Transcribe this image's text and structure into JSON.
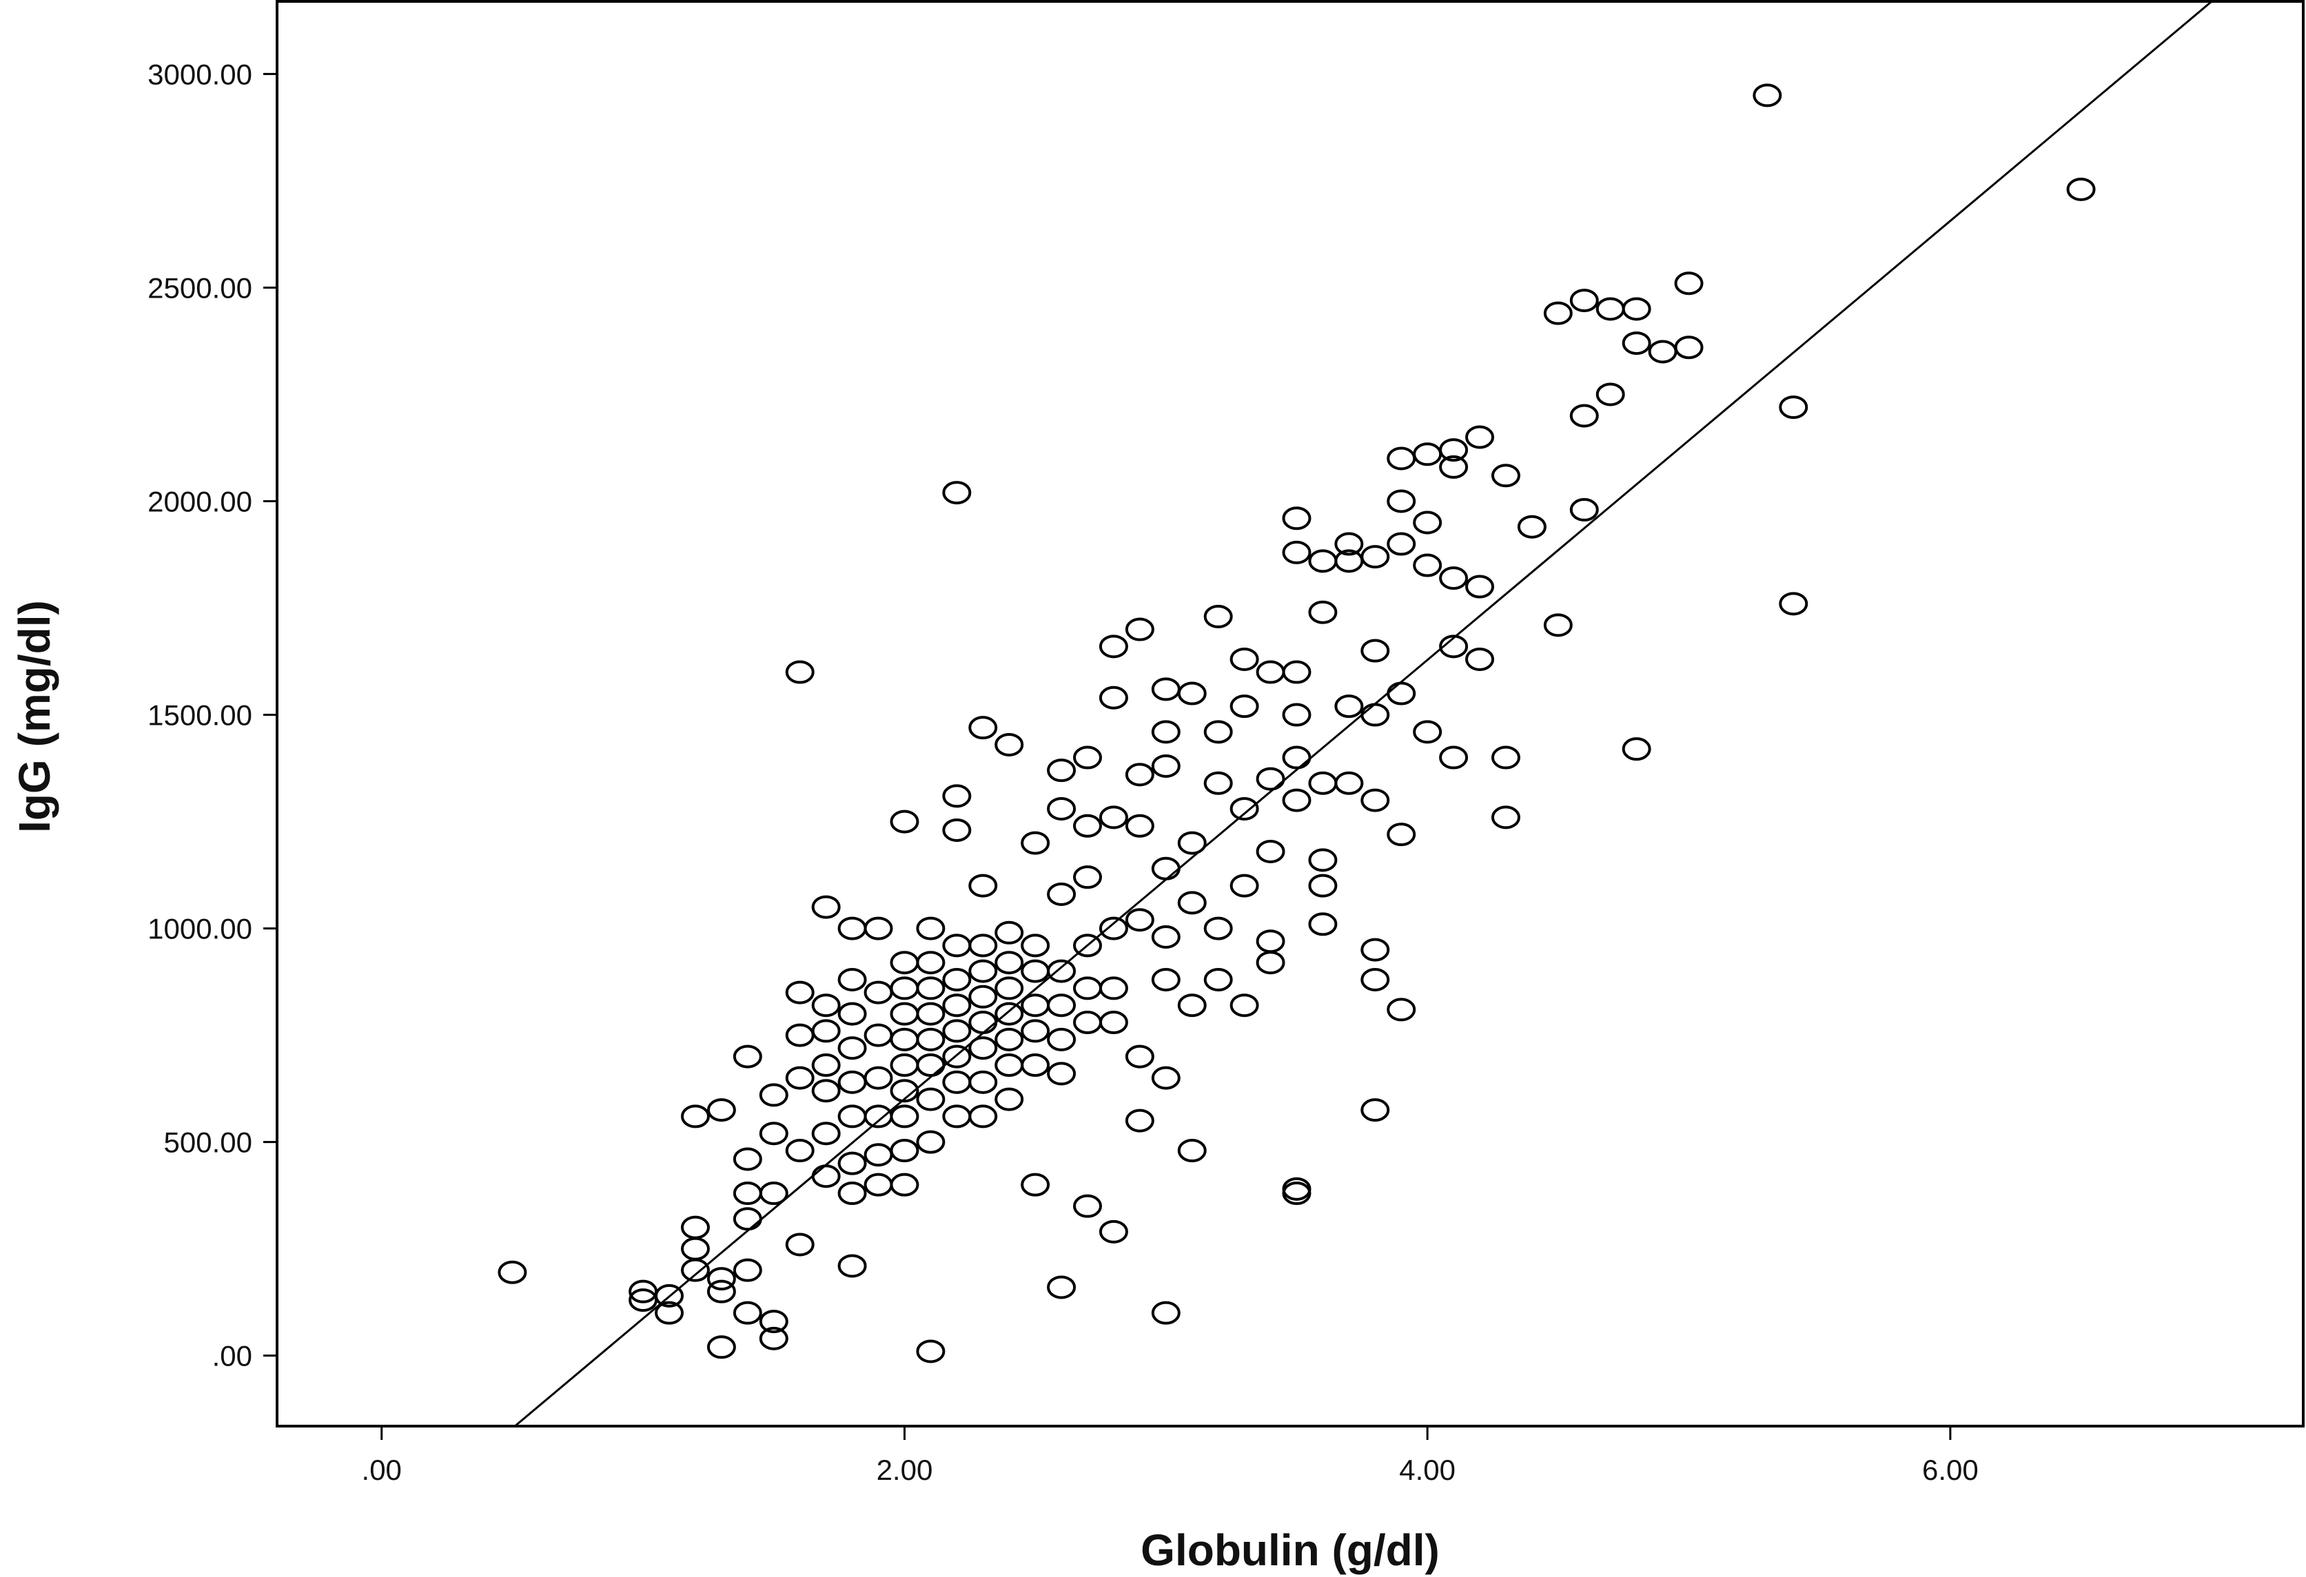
{
  "chart_data": {
    "type": "scatter",
    "title": "",
    "xlabel": "Globulin (g/dl)",
    "ylabel": "IgG (mg/dl)",
    "xlim": [
      -0.4,
      7.35
    ],
    "ylim": [
      -165,
      3170
    ],
    "x_ticks": [
      0,
      2,
      4,
      6
    ],
    "x_tick_labels": [
      ".00",
      "2.00",
      "4.00",
      "6.00"
    ],
    "y_ticks": [
      0,
      500,
      1000,
      1500,
      2000,
      2500,
      3000
    ],
    "y_tick_labels": [
      ".00",
      "500.00",
      "1000.00",
      "1500.00",
      "2000.00",
      "2500.00",
      "3000.00"
    ],
    "grid": false,
    "legend": "none",
    "fit_line": {
      "type": "linear",
      "x": [
        0.5,
        7.0
      ],
      "y": [
        -170,
        3170
      ]
    },
    "series": [
      {
        "marker": "open-circle",
        "color": "#000000",
        "x": [
          0.5,
          1.0,
          1.0,
          1.1,
          1.1,
          1.2,
          1.2,
          1.2,
          1.2,
          1.3,
          1.3,
          1.3,
          1.3,
          1.4,
          1.4,
          1.4,
          1.4,
          1.4,
          1.4,
          1.5,
          1.5,
          1.5,
          1.5,
          1.5,
          1.6,
          1.6,
          1.6,
          1.6,
          1.6,
          1.6,
          1.7,
          1.7,
          1.7,
          1.7,
          1.7,
          1.7,
          1.7,
          1.8,
          1.8,
          1.8,
          1.8,
          1.8,
          1.8,
          1.8,
          1.8,
          1.8,
          1.9,
          1.9,
          1.9,
          1.9,
          1.9,
          1.9,
          1.9,
          2.0,
          2.0,
          2.0,
          2.0,
          2.0,
          2.0,
          2.0,
          2.0,
          2.0,
          2.0,
          2.1,
          2.1,
          2.1,
          2.1,
          2.1,
          2.1,
          2.1,
          2.1,
          2.1,
          2.2,
          2.2,
          2.2,
          2.2,
          2.2,
          2.2,
          2.2,
          2.2,
          2.2,
          2.2,
          2.3,
          2.3,
          2.3,
          2.3,
          2.3,
          2.3,
          2.3,
          2.3,
          2.3,
          2.4,
          2.4,
          2.4,
          2.4,
          2.4,
          2.4,
          2.4,
          2.4,
          2.5,
          2.5,
          2.5,
          2.5,
          2.5,
          2.5,
          2.5,
          2.6,
          2.6,
          2.6,
          2.6,
          2.6,
          2.6,
          2.6,
          2.6,
          2.7,
          2.7,
          2.7,
          2.7,
          2.7,
          2.7,
          2.7,
          2.8,
          2.8,
          2.8,
          2.8,
          2.8,
          2.8,
          2.8,
          2.9,
          2.9,
          2.9,
          2.9,
          2.9,
          2.9,
          3.0,
          3.0,
          3.0,
          3.0,
          3.0,
          3.0,
          3.0,
          3.0,
          3.1,
          3.1,
          3.1,
          3.1,
          3.1,
          3.2,
          3.2,
          3.2,
          3.2,
          3.2,
          3.3,
          3.3,
          3.3,
          3.3,
          3.3,
          3.4,
          3.4,
          3.4,
          3.4,
          3.4,
          3.5,
          3.5,
          3.5,
          3.5,
          3.5,
          3.5,
          3.5,
          3.5,
          3.6,
          3.6,
          3.6,
          3.6,
          3.6,
          3.6,
          3.7,
          3.7,
          3.7,
          3.7,
          3.8,
          3.8,
          3.8,
          3.8,
          3.8,
          3.8,
          3.8,
          3.9,
          3.9,
          3.9,
          3.9,
          3.9,
          3.9,
          4.0,
          4.0,
          4.0,
          4.0,
          4.1,
          4.1,
          4.1,
          4.1,
          4.1,
          4.2,
          4.2,
          4.2,
          4.3,
          4.3,
          4.3,
          4.4,
          4.5,
          4.5,
          4.6,
          4.6,
          4.6,
          4.7,
          4.7,
          4.8,
          4.8,
          4.8,
          4.9,
          5.0,
          5.0,
          5.3,
          5.4,
          5.4,
          6.5
        ],
        "y": [
          195,
          130,
          150,
          100,
          140,
          560,
          250,
          200,
          300,
          575,
          180,
          150,
          20,
          700,
          460,
          380,
          320,
          200,
          100,
          380,
          520,
          610,
          80,
          40,
          1600,
          850,
          750,
          650,
          480,
          260,
          1050,
          820,
          760,
          680,
          620,
          520,
          420,
          1000,
          880,
          800,
          720,
          640,
          560,
          450,
          380,
          210,
          1000,
          850,
          750,
          650,
          560,
          470,
          400,
          1250,
          920,
          860,
          800,
          740,
          680,
          620,
          560,
          480,
          400,
          1000,
          920,
          860,
          800,
          740,
          680,
          600,
          500,
          10,
          2020,
          1310,
          1230,
          960,
          880,
          820,
          760,
          700,
          640,
          560,
          1470,
          1100,
          960,
          900,
          840,
          780,
          720,
          640,
          560,
          1430,
          990,
          920,
          860,
          800,
          740,
          680,
          600,
          1200,
          960,
          900,
          820,
          760,
          680,
          400,
          1370,
          1280,
          1080,
          900,
          820,
          740,
          660,
          160,
          1400,
          1240,
          1120,
          960,
          860,
          780,
          350,
          1660,
          1540,
          1260,
          1000,
          860,
          780,
          290,
          1700,
          1360,
          1240,
          1020,
          700,
          550,
          1560,
          1460,
          1380,
          1140,
          980,
          880,
          650,
          100,
          1550,
          1200,
          1060,
          820,
          480,
          1730,
          1460,
          1340,
          1000,
          880,
          1630,
          1520,
          1280,
          1100,
          820,
          1600,
          1350,
          1180,
          970,
          920,
          1960,
          1880,
          1600,
          1500,
          1400,
          1300,
          390,
          380,
          1860,
          1740,
          1340,
          1160,
          1100,
          1010,
          1900,
          1860,
          1520,
          1340,
          1870,
          1650,
          1500,
          1300,
          950,
          880,
          575,
          2100,
          2000,
          1900,
          1550,
          1220,
          810,
          2110,
          1950,
          1850,
          1460,
          2120,
          2080,
          1820,
          1660,
          1400,
          2150,
          1800,
          1630,
          2060,
          1400,
          1260,
          1940,
          2440,
          1710,
          2470,
          2200,
          1980,
          2450,
          2250,
          2450,
          2370,
          1420,
          2350,
          2510,
          2360,
          2950,
          2220,
          1760,
          2730
        ]
      }
    ]
  }
}
